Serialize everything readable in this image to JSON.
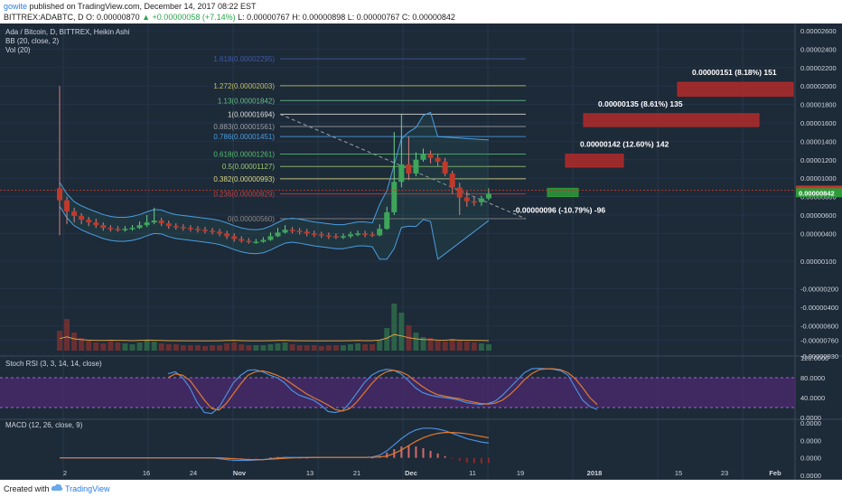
{
  "header": {
    "user": "gowite",
    "published": "published on TradingView.com, December 14, 2017 08:22 EST",
    "ticker": "BITTREX:ADABTC, D",
    "open": "O: 0.00000870",
    "change": "+0.00000058 (+7.14%)",
    "low": "L: 0.00000767",
    "high": "H: 0.00000898",
    "low2": "L: 0.00000767",
    "close": "C: 0.00000842"
  },
  "legend": {
    "title": "Ada / Bitcoin, D, BITTREX, Heikin Ashi",
    "bb": "BB (20, close, 2)",
    "vol": "Vol (20)",
    "stoch": "Stoch RSI (3, 3, 14, 14, close)",
    "macd": "MACD (12, 26, close, 9)"
  },
  "footer": {
    "created": "Created with",
    "brand": "TradingView"
  },
  "colors": {
    "bg": "#1d2a38",
    "up": "#3da55a",
    "down": "#c0392b",
    "k": "#4a8fe0",
    "d": "#e07a30",
    "rsiBand": "#4b2a6e"
  },
  "chart_data": {
    "type": "candlestick",
    "title": "Ada / Bitcoin, D, BITTREX, Heikin Ashi",
    "x_ticks": [
      "2",
      "16",
      "24",
      "Nov",
      "13",
      "21",
      "Dec",
      "11",
      "19",
      "2018",
      "15",
      "23",
      "Feb"
    ],
    "price_axis": [
      "0.00002600",
      "0.00002400",
      "0.00002200",
      "0.00002000",
      "0.00001800",
      "0.00001600",
      "0.00001400",
      "0.00001200",
      "0.00001000",
      "0.00000800",
      "0.00000600",
      "0.00000400",
      "0.00000100",
      "-0.00000200",
      "-0.00000400",
      "-0.00000600",
      "-0.00000760",
      "-0.00000930"
    ],
    "price_labels": [
      "0.00000870",
      "0.00000842"
    ],
    "ylim": [
      -9.3e-06,
      2.6e-05
    ],
    "fib_levels": [
      {
        "label": "1.618(0.00002295)",
        "value": 2.295e-05,
        "color": "#3f5aa8"
      },
      {
        "label": "1.272(0.00002003)",
        "value": 2.003e-05,
        "color": "#c0c060"
      },
      {
        "label": "1.13(0.00001842)",
        "value": 1.842e-05,
        "color": "#66c088"
      },
      {
        "label": "1(0.00001694)",
        "value": 1.694e-05,
        "color": "#dddddd"
      },
      {
        "label": "0.883(0.00001561)",
        "value": 1.561e-05,
        "color": "#9aa0a8"
      },
      {
        "label": "0.786(0.00001451)",
        "value": 1.451e-05,
        "color": "#4a9ee0"
      },
      {
        "label": "0.618(0.00001261)",
        "value": 1.261e-05,
        "color": "#55c070"
      },
      {
        "label": "0.5(0.00001127)",
        "value": 1.127e-05,
        "color": "#9ac870"
      },
      {
        "label": "0.382(0.00000993)",
        "value": 9.93e-06,
        "color": "#d8d880"
      },
      {
        "label": "0.236(0.00000829)",
        "value": 8.29e-06,
        "color": "#c04040"
      },
      {
        "label": "0(0.00000560)",
        "value": 5.6e-06,
        "color": "#8a8a8a"
      }
    ],
    "annotations": [
      {
        "text": "0.00000151 (8.18%) 151",
        "lo": 1.89e-05,
        "hi": 2.04e-05,
        "color": "#b22a2a"
      },
      {
        "text": "0.00000135 (8.61%) 135",
        "lo": 1.56e-05,
        "hi": 1.7e-05,
        "color": "#b22a2a"
      },
      {
        "text": "0.00000142 (12.60%) 142",
        "lo": 1.12e-05,
        "hi": 1.26e-05,
        "color": "#b22a2a"
      },
      {
        "text": "-0.00000096 (-10.79%) -96",
        "lo": 8e-06,
        "hi": 8.9e-06,
        "color": "#2e9a3a"
      }
    ],
    "candles": [
      {
        "o": 8.9,
        "c": 7.6,
        "h": 20.0,
        "l": 3.8
      },
      {
        "o": 7.6,
        "c": 6.4,
        "h": 8.0,
        "l": 5.0
      },
      {
        "o": 6.4,
        "c": 5.9,
        "h": 6.8,
        "l": 5.2
      },
      {
        "o": 5.9,
        "c": 5.5,
        "h": 6.2,
        "l": 5.0
      },
      {
        "o": 5.5,
        "c": 5.2,
        "h": 5.8,
        "l": 4.8
      },
      {
        "o": 5.2,
        "c": 4.9,
        "h": 5.6,
        "l": 4.6
      },
      {
        "o": 4.9,
        "c": 4.6,
        "h": 5.2,
        "l": 4.3
      },
      {
        "o": 4.6,
        "c": 4.5,
        "h": 4.9,
        "l": 4.2
      },
      {
        "o": 4.5,
        "c": 4.4,
        "h": 4.8,
        "l": 4.2
      },
      {
        "o": 4.4,
        "c": 4.5,
        "h": 4.8,
        "l": 4.2
      },
      {
        "o": 4.5,
        "c": 4.6,
        "h": 4.9,
        "l": 4.3
      },
      {
        "o": 4.6,
        "c": 4.9,
        "h": 5.3,
        "l": 4.5
      },
      {
        "o": 4.9,
        "c": 5.2,
        "h": 6.0,
        "l": 4.7
      },
      {
        "o": 5.2,
        "c": 5.4,
        "h": 6.8,
        "l": 5.0
      },
      {
        "o": 5.4,
        "c": 5.1,
        "h": 5.7,
        "l": 4.8
      },
      {
        "o": 5.1,
        "c": 4.8,
        "h": 5.4,
        "l": 4.5
      },
      {
        "o": 4.8,
        "c": 4.7,
        "h": 5.1,
        "l": 4.4
      },
      {
        "o": 4.7,
        "c": 4.6,
        "h": 5.0,
        "l": 4.3
      },
      {
        "o": 4.6,
        "c": 4.5,
        "h": 4.9,
        "l": 4.2
      },
      {
        "o": 4.5,
        "c": 4.4,
        "h": 4.8,
        "l": 4.1
      },
      {
        "o": 4.4,
        "c": 4.3,
        "h": 4.7,
        "l": 4.0
      },
      {
        "o": 4.3,
        "c": 4.2,
        "h": 4.6,
        "l": 3.9
      },
      {
        "o": 4.2,
        "c": 4.0,
        "h": 4.5,
        "l": 3.7
      },
      {
        "o": 4.0,
        "c": 3.7,
        "h": 4.3,
        "l": 3.4
      },
      {
        "o": 3.7,
        "c": 3.4,
        "h": 4.0,
        "l": 3.1
      },
      {
        "o": 3.4,
        "c": 3.2,
        "h": 3.7,
        "l": 3.0
      },
      {
        "o": 3.2,
        "c": 3.1,
        "h": 3.5,
        "l": 2.9
      },
      {
        "o": 3.1,
        "c": 3.1,
        "h": 3.4,
        "l": 2.9
      },
      {
        "o": 3.1,
        "c": 3.3,
        "h": 3.6,
        "l": 3.0
      },
      {
        "o": 3.3,
        "c": 3.7,
        "h": 4.1,
        "l": 3.2
      },
      {
        "o": 3.7,
        "c": 4.1,
        "h": 4.6,
        "l": 3.6
      },
      {
        "o": 4.1,
        "c": 4.4,
        "h": 4.9,
        "l": 4.0
      },
      {
        "o": 4.4,
        "c": 4.3,
        "h": 4.7,
        "l": 4.0
      },
      {
        "o": 4.3,
        "c": 4.2,
        "h": 4.6,
        "l": 3.9
      },
      {
        "o": 4.2,
        "c": 4.0,
        "h": 4.5,
        "l": 3.7
      },
      {
        "o": 4.0,
        "c": 3.9,
        "h": 4.3,
        "l": 3.6
      },
      {
        "o": 3.9,
        "c": 3.8,
        "h": 4.2,
        "l": 3.5
      },
      {
        "o": 3.8,
        "c": 3.7,
        "h": 4.1,
        "l": 3.4
      },
      {
        "o": 3.7,
        "c": 3.6,
        "h": 4.0,
        "l": 3.4
      },
      {
        "o": 3.6,
        "c": 3.7,
        "h": 4.0,
        "l": 3.4
      },
      {
        "o": 3.7,
        "c": 3.9,
        "h": 4.2,
        "l": 3.5
      },
      {
        "o": 3.9,
        "c": 4.0,
        "h": 4.3,
        "l": 3.7
      },
      {
        "o": 4.0,
        "c": 3.9,
        "h": 4.3,
        "l": 3.6
      },
      {
        "o": 3.9,
        "c": 3.8,
        "h": 4.2,
        "l": 3.6
      },
      {
        "o": 3.8,
        "c": 4.5,
        "h": 5.0,
        "l": 3.7
      },
      {
        "o": 4.5,
        "c": 6.3,
        "h": 6.9,
        "l": 4.4
      },
      {
        "o": 6.3,
        "c": 9.6,
        "h": 15.0,
        "l": 6.0
      },
      {
        "o": 9.6,
        "c": 11.5,
        "h": 17.0,
        "l": 9.0
      },
      {
        "o": 11.5,
        "c": 10.5,
        "h": 14.5,
        "l": 9.8
      },
      {
        "o": 10.5,
        "c": 12.0,
        "h": 12.8,
        "l": 10.2
      },
      {
        "o": 12.0,
        "c": 12.6,
        "h": 13.2,
        "l": 11.8
      },
      {
        "o": 12.6,
        "c": 12.2,
        "h": 13.0,
        "l": 11.6
      },
      {
        "o": 12.2,
        "c": 11.8,
        "h": 12.6,
        "l": 11.3
      },
      {
        "o": 11.8,
        "c": 10.5,
        "h": 12.2,
        "l": 10.2
      },
      {
        "o": 10.5,
        "c": 9.0,
        "h": 10.8,
        "l": 8.3
      },
      {
        "o": 9.0,
        "c": 7.9,
        "h": 9.5,
        "l": 6.0
      },
      {
        "o": 7.9,
        "c": 7.5,
        "h": 8.6,
        "l": 6.9
      },
      {
        "o": 7.5,
        "c": 7.4,
        "h": 8.0,
        "l": 7.0
      },
      {
        "o": 7.4,
        "c": 7.8,
        "h": 8.1,
        "l": 7.0
      },
      {
        "o": 7.8,
        "c": 8.3,
        "h": 8.9,
        "l": 7.6
      }
    ],
    "volume": [
      22,
      35,
      20,
      14,
      11,
      9,
      8,
      10,
      9,
      8,
      7,
      9,
      11,
      10,
      8,
      7,
      7,
      6,
      6,
      6,
      5,
      6,
      6,
      8,
      9,
      7,
      6,
      6,
      6,
      7,
      8,
      9,
      7,
      6,
      6,
      6,
      5,
      6,
      6,
      6,
      7,
      8,
      7,
      7,
      12,
      25,
      52,
      42,
      28,
      20,
      15,
      14,
      11,
      10,
      13,
      11,
      10,
      9,
      8,
      7
    ],
    "stoch_rsi": {
      "k": [
        88,
        92,
        80,
        60,
        30,
        10,
        8,
        20,
        45,
        70,
        85,
        95,
        96,
        92,
        85,
        80,
        70,
        55,
        45,
        40,
        35,
        25,
        12,
        10,
        14,
        30,
        50,
        70,
        85,
        93,
        97,
        95,
        88,
        75,
        60,
        50,
        45,
        42,
        40,
        38,
        35,
        30,
        28,
        26,
        28,
        33,
        45,
        60,
        75,
        90,
        98,
        99,
        98,
        97,
        94,
        85,
        60,
        35,
        22,
        16
      ],
      "d": [
        80,
        88,
        85,
        75,
        55,
        35,
        18,
        15,
        28,
        48,
        68,
        85,
        92,
        94,
        90,
        85,
        78,
        68,
        58,
        48,
        40,
        33,
        25,
        16,
        13,
        18,
        32,
        50,
        68,
        83,
        92,
        95,
        92,
        85,
        73,
        62,
        53,
        46,
        43,
        40,
        38,
        34,
        31,
        28,
        27,
        29,
        35,
        46,
        60,
        76,
        88,
        96,
        98,
        98,
        96,
        90,
        78,
        60,
        40,
        26
      ],
      "levels": [
        "120.0000",
        "80.0000",
        "40.0000",
        "0.0000"
      ]
    },
    "macd": {
      "macd": [
        0,
        0,
        0,
        0,
        0,
        0,
        0,
        0,
        0,
        0,
        0,
        0,
        0,
        0,
        0,
        0,
        0,
        0,
        0,
        0,
        0,
        0,
        -0.1,
        -0.2,
        -0.3,
        -0.3,
        -0.3,
        -0.25,
        -0.2,
        -0.1,
        0,
        0.05,
        0.05,
        0.05,
        0.05,
        0.05,
        0.05,
        0.05,
        0.05,
        0.05,
        0.05,
        0.05,
        0.05,
        0.1,
        0.3,
        0.8,
        1.5,
        2.2,
        2.8,
        3.2,
        3.4,
        3.4,
        3.3,
        3.1,
        2.8,
        2.5,
        2.2,
        2.0,
        1.8,
        1.7
      ],
      "signal": [
        0,
        0,
        0,
        0,
        0,
        0,
        0,
        0,
        0,
        0,
        0,
        0,
        0,
        0,
        0,
        0,
        0,
        0,
        0,
        0,
        0,
        0,
        0,
        -0.05,
        -0.1,
        -0.15,
        -0.2,
        -0.2,
        -0.2,
        -0.15,
        -0.1,
        -0.05,
        0,
        0.02,
        0.03,
        0.04,
        0.05,
        0.05,
        0.05,
        0.05,
        0.05,
        0.05,
        0.05,
        0.06,
        0.1,
        0.2,
        0.5,
        0.9,
        1.4,
        1.9,
        2.3,
        2.6,
        2.8,
        2.9,
        2.9,
        2.85,
        2.75,
        2.6,
        2.45,
        2.3
      ],
      "levels": [
        "0.0000",
        "0.0000",
        "0.0000",
        "0.0000"
      ]
    }
  }
}
